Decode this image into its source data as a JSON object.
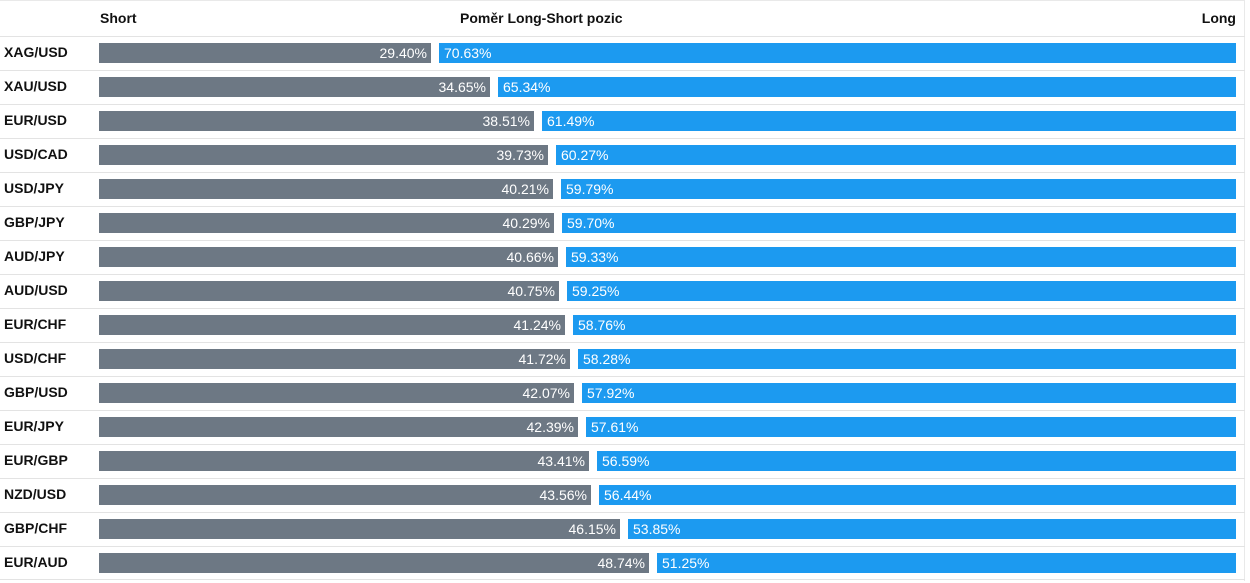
{
  "chart_data": {
    "type": "bar",
    "orientation": "horizontal",
    "stacked": true,
    "title": "Poměr Long-Short pozic",
    "short_label": "Short",
    "long_label": "Long",
    "categories": [
      "XAG/USD",
      "XAU/USD",
      "EUR/USD",
      "USD/CAD",
      "USD/JPY",
      "GBP/JPY",
      "AUD/JPY",
      "AUD/USD",
      "EUR/CHF",
      "USD/CHF",
      "GBP/USD",
      "EUR/JPY",
      "EUR/GBP",
      "NZD/USD",
      "GBP/CHF",
      "EUR/AUD"
    ],
    "short_labels": [
      "29.40%",
      "34.65%",
      "38.51%",
      "39.73%",
      "40.21%",
      "40.29%",
      "40.66%",
      "40.75%",
      "41.24%",
      "41.72%",
      "42.07%",
      "42.39%",
      "43.41%",
      "43.56%",
      "46.15%",
      "48.74%"
    ],
    "long_labels": [
      "70.63%",
      "65.34%",
      "61.49%",
      "60.27%",
      "59.79%",
      "59.70%",
      "59.33%",
      "59.25%",
      "58.76%",
      "58.28%",
      "57.92%",
      "57.61%",
      "56.59%",
      "56.44%",
      "53.85%",
      "51.25%"
    ],
    "series": [
      {
        "name": "Short",
        "values": [
          29.4,
          34.65,
          38.51,
          39.73,
          40.21,
          40.29,
          40.66,
          40.75,
          41.24,
          41.72,
          42.07,
          42.39,
          43.41,
          43.56,
          46.15,
          48.74
        ]
      },
      {
        "name": "Long",
        "values": [
          70.63,
          65.34,
          61.49,
          60.27,
          59.79,
          59.7,
          59.33,
          59.25,
          58.76,
          58.28,
          57.92,
          57.61,
          56.59,
          56.44,
          53.85,
          51.25
        ]
      }
    ],
    "xlim": [
      0,
      100
    ],
    "colors": {
      "short": "#6d7884",
      "long": "#1c9af0"
    },
    "grid": false,
    "legend": "none"
  }
}
